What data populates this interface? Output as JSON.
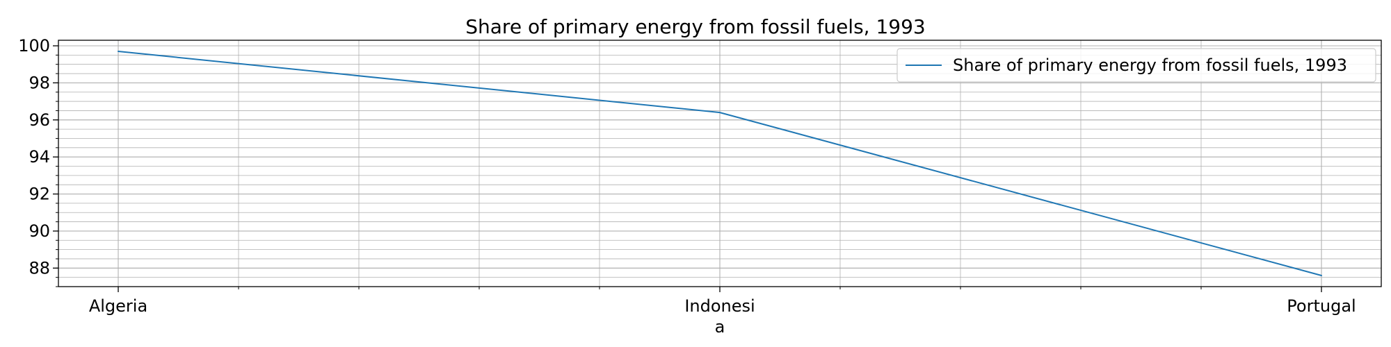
{
  "chart_data": {
    "type": "line",
    "title": "Share of primary energy from fossil fuels, 1993",
    "xlabel": "",
    "ylabel": "",
    "categories": [
      "Algeria",
      "Indonesia",
      "Portugal"
    ],
    "category_label_lines": [
      [
        "Algeria"
      ],
      [
        "Indonesi",
        "a"
      ],
      [
        "Portugal"
      ]
    ],
    "series": [
      {
        "name": "Share of primary energy from fossil fuels, 1993",
        "values": [
          99.7,
          96.4,
          87.6
        ]
      }
    ],
    "ylim": [
      87.0,
      100.3
    ],
    "y_major_ticks": [
      88,
      90,
      92,
      94,
      96,
      98,
      100
    ],
    "y_minor_step": 0.5,
    "x_minor_per_interval": 5,
    "grid": true,
    "legend_position": "top-right",
    "colors": {
      "series": "#1f77b4"
    }
  }
}
